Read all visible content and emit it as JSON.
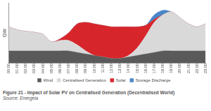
{
  "chart_data": {
    "type": "area",
    "caption": "Figure 21 - Impact of Solar PV on Centralised Generation (Decentralised World)",
    "source": "Source: Energeia",
    "y_label": "GW",
    "categories": [
      "00:00",
      "01:00",
      "02:00",
      "03:00",
      "04:00",
      "05:00",
      "06:00",
      "07:00",
      "08:00",
      "09:00",
      "10:00",
      "11:00",
      "12:00",
      "13:00",
      "14:00",
      "15:00",
      "16:00",
      "17:00",
      "18:00",
      "19:00",
      "20:00",
      "21:00",
      "22:00",
      "23:00"
    ],
    "series": [
      {
        "name": "Wind",
        "color": "#5a5a5a",
        "values": [
          0.4,
          0.4,
          0.4,
          0.4,
          0.4,
          0.4,
          0.4,
          0.4,
          0.35,
          0.3,
          0.25,
          0.2,
          0.15,
          0.15,
          0.2,
          0.25,
          0.3,
          0.35,
          0.4,
          0.4,
          0.4,
          0.4,
          0.4,
          0.4
        ]
      },
      {
        "name": "Centralised Generation",
        "color": "#d9d9d9",
        "values": [
          0.8,
          0.7,
          0.65,
          0.62,
          0.55,
          0.3,
          0.35,
          0.35,
          0.25,
          0.1,
          0,
          0,
          0,
          0,
          0.05,
          0.25,
          0.6,
          1.0,
          1.2,
          1.3,
          1.1,
          0.9,
          0.8,
          0.9
        ]
      },
      {
        "name": "Solar",
        "color": "#d7262b",
        "values": [
          0,
          0,
          0,
          0,
          0,
          0,
          0.05,
          0.25,
          0.7,
          0.95,
          1.05,
          1.05,
          1.05,
          1.05,
          0.95,
          0.7,
          0.35,
          0.1,
          0,
          0,
          0,
          0,
          0,
          0
        ]
      },
      {
        "name": "Storage Discharge",
        "color": "#4a86c8",
        "values": [
          0,
          0,
          0,
          0,
          0,
          0,
          0,
          0,
          0,
          0,
          0,
          0,
          0,
          0,
          0,
          0,
          0,
          0.15,
          0.15,
          0,
          0,
          0,
          0,
          0
        ]
      }
    ],
    "ylim": [
      0,
      2
    ],
    "stacked": true,
    "grid": false,
    "legend": "bottom",
    "tick_labels": "x"
  }
}
